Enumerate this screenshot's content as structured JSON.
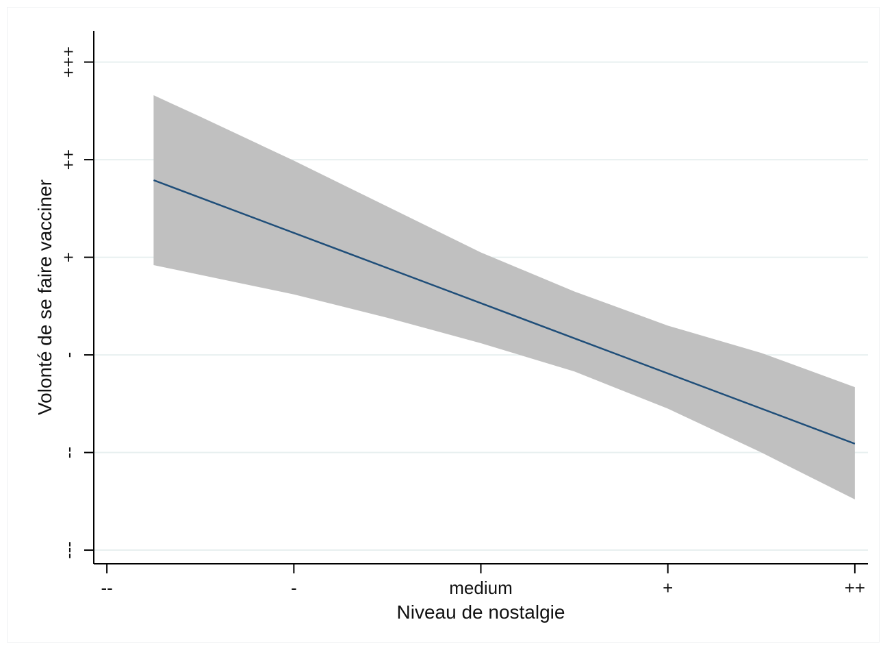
{
  "chart_data": {
    "type": "line",
    "xlabel": "Niveau de nostalgie",
    "ylabel": "Volonté de se faire vacciner",
    "x_ticks": [
      {
        "value": 1,
        "label": "--"
      },
      {
        "value": 2,
        "label": "-"
      },
      {
        "value": 3,
        "label": "medium"
      },
      {
        "value": 4,
        "label": "+"
      },
      {
        "value": 5,
        "label": "++"
      }
    ],
    "y_ticks": [
      {
        "value": 1,
        "label": "---"
      },
      {
        "value": 2,
        "label": "--"
      },
      {
        "value": 3,
        "label": "-"
      },
      {
        "value": 4,
        "label": "+"
      },
      {
        "value": 5,
        "label": "++"
      },
      {
        "value": 6,
        "label": "+++"
      }
    ],
    "xlim": [
      0.93,
      5.07
    ],
    "ylim": [
      0.86,
      6.32
    ],
    "grid": true,
    "series": [
      {
        "x": [
          1.25,
          5.0
        ],
        "y": [
          4.79,
          2.09
        ],
        "ci_lower": [
          [
            1.25,
            3.92
          ],
          [
            1.5,
            3.82
          ],
          [
            2.0,
            3.62
          ],
          [
            2.5,
            3.38
          ],
          [
            3.0,
            3.12
          ],
          [
            3.5,
            2.83
          ],
          [
            4.0,
            2.45
          ],
          [
            4.5,
            2.0
          ],
          [
            5.0,
            1.52
          ]
        ],
        "ci_upper": [
          [
            1.25,
            5.66
          ],
          [
            1.5,
            5.44
          ],
          [
            2.0,
            4.99
          ],
          [
            2.5,
            4.52
          ],
          [
            3.0,
            4.05
          ],
          [
            3.5,
            3.65
          ],
          [
            4.0,
            3.3
          ],
          [
            4.5,
            3.02
          ],
          [
            5.0,
            2.67
          ]
        ]
      }
    ],
    "colors": {
      "line": "#1f4e79",
      "band": "#c0c0c0",
      "grid": "#e8f0f0",
      "axis": "#000000"
    }
  }
}
